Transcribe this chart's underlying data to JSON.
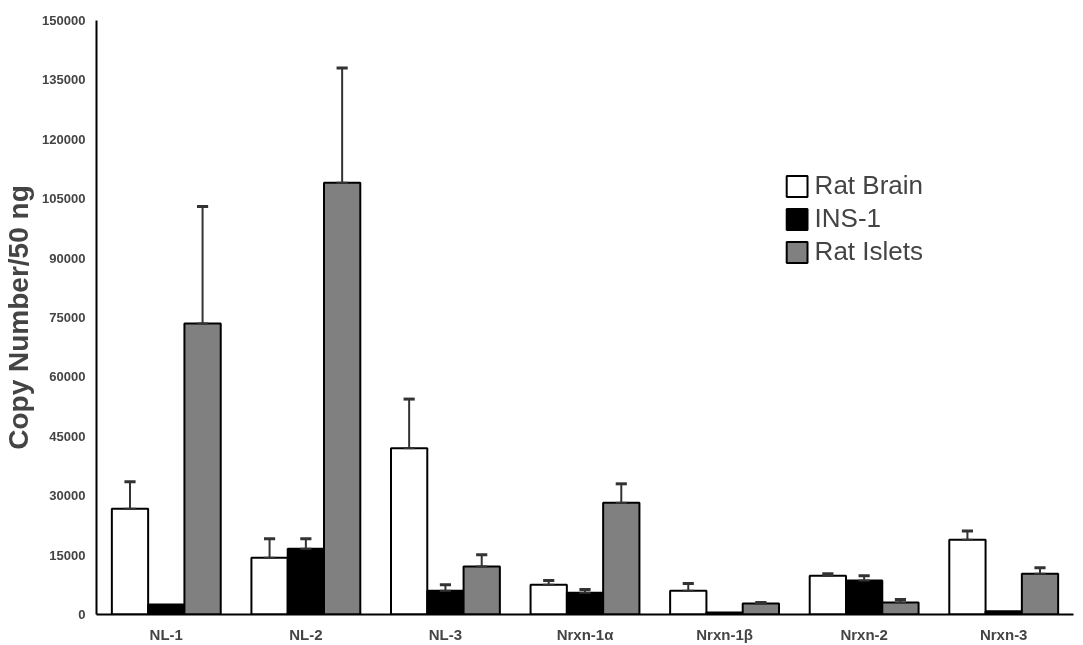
{
  "chart_data": {
    "type": "bar",
    "ylabel": "Copy Number/50 ng",
    "categories": [
      "NL-1",
      "NL-2",
      "NL-3",
      "Nrxn-1α",
      "Nrxn-1β",
      "Nrxn-2",
      "Nrxn-3"
    ],
    "series": [
      {
        "name": "Rat Brain",
        "color": "#ffffff",
        "values": [
          26700,
          14300,
          42000,
          7500,
          6000,
          9800,
          18900
        ],
        "errors": [
          [
            26700,
            33500
          ],
          [
            14300,
            19100
          ],
          [
            42000,
            54400
          ],
          [
            7500,
            8600
          ],
          [
            6000,
            7800
          ],
          [
            9800,
            10300
          ],
          [
            18900,
            21100
          ]
        ]
      },
      {
        "name": "INS-1",
        "color": "#000000",
        "values": [
          2500,
          16600,
          6000,
          5500,
          500,
          8600,
          800
        ],
        "errors": [
          null,
          [
            16600,
            19100
          ],
          [
            6000,
            7500
          ],
          [
            5500,
            6300
          ],
          null,
          [
            8600,
            9800
          ],
          null
        ]
      },
      {
        "name": "Rat Islets",
        "color": "#808080",
        "values": [
          73500,
          109000,
          12100,
          28200,
          2800,
          3000,
          10300
        ],
        "errors": [
          [
            73500,
            103000
          ],
          [
            109000,
            138000
          ],
          [
            12100,
            15100
          ],
          [
            28200,
            33000
          ],
          [
            2800,
            3000
          ],
          [
            3000,
            3800
          ],
          [
            10300,
            11800
          ]
        ]
      }
    ],
    "ylim": [
      0,
      150000
    ],
    "yticks": [
      0,
      15000,
      30000,
      45000,
      60000,
      75000,
      90000,
      105000,
      120000,
      135000,
      150000
    ],
    "grid": false,
    "legend": "top right"
  }
}
